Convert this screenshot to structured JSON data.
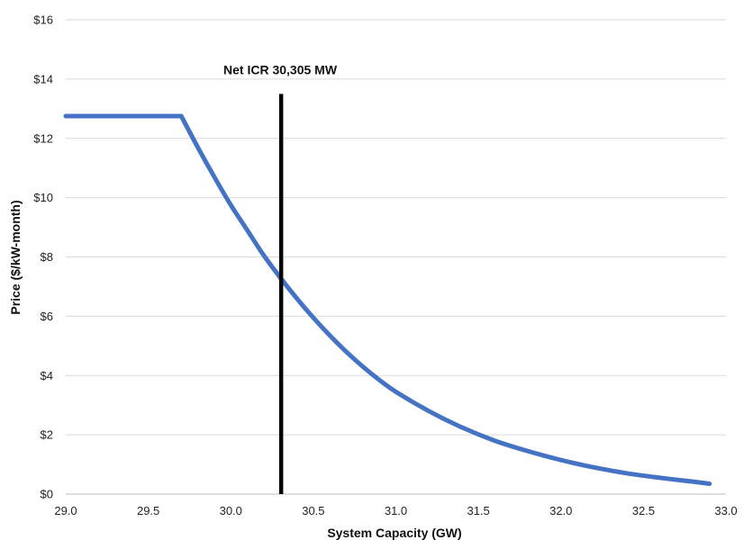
{
  "chart_data": {
    "type": "line",
    "title": "",
    "xlabel": "System Capacity (GW)",
    "ylabel": "Price ($/kW-month)",
    "xlim": [
      29.0,
      33.0
    ],
    "ylim": [
      0,
      16
    ],
    "x_ticks": [
      29.0,
      29.5,
      30.0,
      30.5,
      31.0,
      31.5,
      32.0,
      32.5,
      33.0
    ],
    "x_tick_labels": [
      "29.0",
      "29.5",
      "30.0",
      "30.5",
      "31.0",
      "31.5",
      "32.0",
      "32.5",
      "33.0"
    ],
    "y_ticks": [
      0,
      2,
      4,
      6,
      8,
      10,
      12,
      14,
      16
    ],
    "y_tick_labels": [
      "$0",
      "$2",
      "$4",
      "$6",
      "$8",
      "$10",
      "$12",
      "$14",
      "$16"
    ],
    "grid": "horizontal",
    "series": [
      {
        "color": "#4472C4",
        "x": [
          29.0,
          29.7,
          29.8,
          29.9,
          30.0,
          30.1,
          30.2,
          30.3,
          30.4,
          30.5,
          30.6,
          30.7,
          30.8,
          30.9,
          31.0,
          31.2,
          31.4,
          31.6,
          31.8,
          32.0,
          32.2,
          32.4,
          32.6,
          32.8,
          32.9
        ],
        "y": [
          12.75,
          12.75,
          11.7,
          10.7,
          9.75,
          8.9,
          8.05,
          7.3,
          6.6,
          5.95,
          5.35,
          4.8,
          4.3,
          3.85,
          3.45,
          2.8,
          2.25,
          1.8,
          1.45,
          1.15,
          0.9,
          0.7,
          0.55,
          0.42,
          0.35
        ]
      }
    ],
    "annotations": [
      {
        "label": "Net ICR  30,305 MW",
        "x": 30.305,
        "y_top": 13.5,
        "color": "#000000"
      }
    ]
  }
}
